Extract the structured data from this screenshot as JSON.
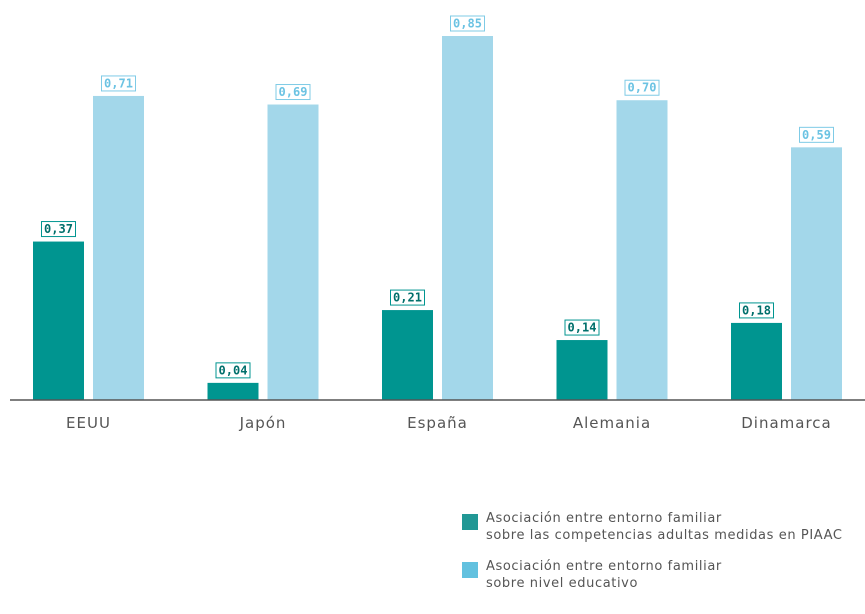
{
  "chart_data": {
    "type": "bar",
    "categories": [
      "EEUU",
      "Japón",
      "España",
      "Alemania",
      "Dinamarca"
    ],
    "series": [
      {
        "name": "Asociación entre entorno familiar\nsobre las competencias adultas medidas en PIAAC",
        "values": [
          0.37,
          0.04,
          0.21,
          0.14,
          0.18
        ],
        "labels": [
          "0,37",
          "0,04",
          "0,21",
          "0,14",
          "0,18"
        ],
        "color": "#009590"
      },
      {
        "name": "Asociación entre entorno familiar\nsobre nivel educativo",
        "values": [
          0.71,
          0.69,
          0.85,
          0.7,
          0.59
        ],
        "labels": [
          "0,71",
          "0,69",
          "0,85",
          "0,70",
          "0,59"
        ],
        "color": "#a3d7ea"
      }
    ],
    "ylim": [
      0,
      0.85
    ],
    "grid": false,
    "legend_position": "bottom-right"
  }
}
